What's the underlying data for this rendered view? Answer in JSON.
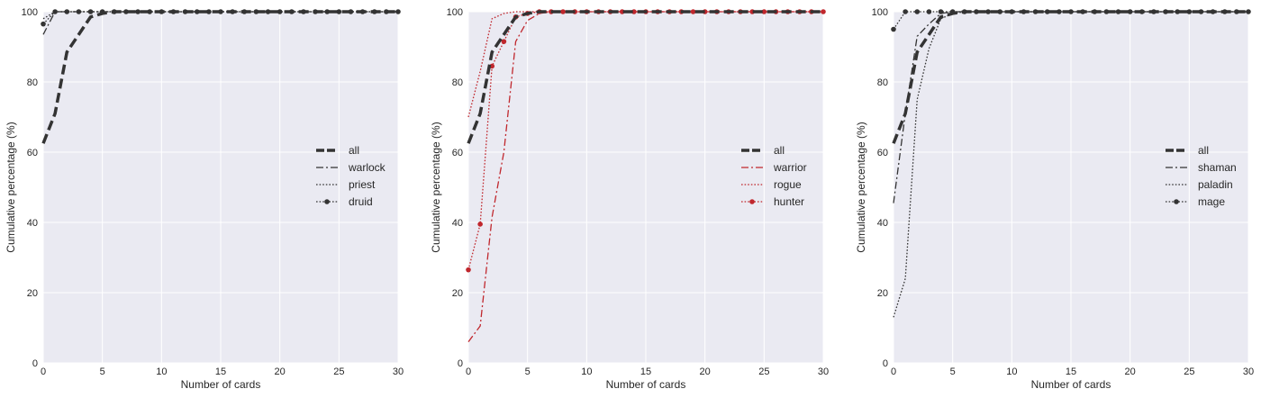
{
  "chart_data": [
    {
      "type": "line",
      "xlabel": "Number of cards",
      "ylabel": "Cumulative percentage (%)",
      "xlim": [
        0,
        30
      ],
      "ylim": [
        0,
        100
      ],
      "xticks": [
        "0",
        "5",
        "10",
        "15",
        "20",
        "25",
        "30"
      ],
      "yticks": [
        "0",
        "20",
        "40",
        "60",
        "80",
        "100"
      ],
      "grid": true,
      "legend_position": "center-right",
      "x": [
        0,
        1,
        2,
        3,
        4,
        5,
        6,
        7,
        8,
        9,
        10,
        11,
        12,
        13,
        14,
        15,
        16,
        17,
        18,
        19,
        20,
        21,
        22,
        23,
        24,
        25,
        26,
        27,
        28,
        29,
        30
      ],
      "series": [
        {
          "name": "all",
          "style": "thick-dashed",
          "color": "#333333",
          "values": [
            62.5,
            71,
            88.5,
            93.5,
            98.5,
            99.5,
            100,
            100,
            100,
            100,
            100,
            100,
            100,
            100,
            100,
            100,
            100,
            100,
            100,
            100,
            100,
            100,
            100,
            100,
            100,
            100,
            100,
            100,
            100,
            100,
            100
          ]
        },
        {
          "name": "warlock",
          "style": "dash-dot",
          "color": "#333333",
          "values": [
            93.5,
            100,
            100,
            100,
            100,
            100,
            100,
            100,
            100,
            100,
            100,
            100,
            100,
            100,
            100,
            100,
            100,
            100,
            100,
            100,
            100,
            100,
            100,
            100,
            100,
            100,
            100,
            100,
            100,
            100,
            100
          ]
        },
        {
          "name": "priest",
          "style": "dotted",
          "color": "#333333",
          "values": [
            98,
            100,
            100,
            100,
            100,
            100,
            100,
            100,
            100,
            100,
            100,
            100,
            100,
            100,
            100,
            100,
            100,
            100,
            100,
            100,
            100,
            100,
            100,
            100,
            100,
            100,
            100,
            100,
            100,
            100,
            100
          ]
        },
        {
          "name": "druid",
          "style": "dotted-marker",
          "color": "#333333",
          "values": [
            96.5,
            100,
            100,
            100,
            100,
            100,
            100,
            100,
            100,
            100,
            100,
            100,
            100,
            100,
            100,
            100,
            100,
            100,
            100,
            100,
            100,
            100,
            100,
            100,
            100,
            100,
            100,
            100,
            100,
            100,
            100
          ]
        }
      ]
    },
    {
      "type": "line",
      "xlabel": "Number of cards",
      "ylabel": "Cumulative percentage (%)",
      "xlim": [
        0,
        30
      ],
      "ylim": [
        0,
        100
      ],
      "xticks": [
        "0",
        "5",
        "10",
        "15",
        "20",
        "25",
        "30"
      ],
      "yticks": [
        "0",
        "20",
        "40",
        "60",
        "80",
        "100"
      ],
      "grid": true,
      "legend_position": "center-right",
      "x": [
        0,
        1,
        2,
        3,
        4,
        5,
        6,
        7,
        8,
        9,
        10,
        11,
        12,
        13,
        14,
        15,
        16,
        17,
        18,
        19,
        20,
        21,
        22,
        23,
        24,
        25,
        26,
        27,
        28,
        29,
        30
      ],
      "series": [
        {
          "name": "all",
          "style": "thick-dashed",
          "color": "#333333",
          "values": [
            62.5,
            71,
            88.5,
            93.5,
            98.5,
            99.5,
            100,
            100,
            100,
            100,
            100,
            100,
            100,
            100,
            100,
            100,
            100,
            100,
            100,
            100,
            100,
            100,
            100,
            100,
            100,
            100,
            100,
            100,
            100,
            100,
            100
          ]
        },
        {
          "name": "warrior",
          "style": "dash-dot",
          "color": "#c0272d",
          "values": [
            6,
            10.5,
            41.5,
            60,
            91.5,
            97.5,
            99.5,
            100,
            100,
            100,
            100,
            100,
            100,
            100,
            100,
            100,
            100,
            100,
            100,
            100,
            100,
            100,
            100,
            100,
            100,
            100,
            100,
            100,
            100,
            100,
            100
          ]
        },
        {
          "name": "rogue",
          "style": "dotted",
          "color": "#c0272d",
          "values": [
            70,
            83,
            98,
            99.5,
            100,
            100,
            100,
            100,
            100,
            100,
            100,
            100,
            100,
            100,
            100,
            100,
            100,
            100,
            100,
            100,
            100,
            100,
            100,
            100,
            100,
            100,
            100,
            100,
            100,
            100,
            100
          ]
        },
        {
          "name": "hunter",
          "style": "dotted-marker",
          "color": "#c0272d",
          "values": [
            26.5,
            39.5,
            84.5,
            91.5,
            98.5,
            99.5,
            100,
            100,
            100,
            100,
            100,
            100,
            100,
            100,
            100,
            100,
            100,
            100,
            100,
            100,
            100,
            100,
            100,
            100,
            100,
            100,
            100,
            100,
            100,
            100,
            100
          ]
        }
      ]
    },
    {
      "type": "line",
      "xlabel": "Number of cards",
      "ylabel": "Cumulative percentage (%)",
      "xlim": [
        0,
        30
      ],
      "ylim": [
        0,
        100
      ],
      "xticks": [
        "0",
        "5",
        "10",
        "15",
        "20",
        "25",
        "30"
      ],
      "yticks": [
        "0",
        "20",
        "40",
        "60",
        "80",
        "100"
      ],
      "grid": true,
      "legend_position": "center-right",
      "x": [
        0,
        1,
        2,
        3,
        4,
        5,
        6,
        7,
        8,
        9,
        10,
        11,
        12,
        13,
        14,
        15,
        16,
        17,
        18,
        19,
        20,
        21,
        22,
        23,
        24,
        25,
        26,
        27,
        28,
        29,
        30
      ],
      "series": [
        {
          "name": "all",
          "style": "thick-dashed",
          "color": "#333333",
          "values": [
            62.5,
            71,
            88.5,
            93.5,
            98.5,
            99.5,
            100,
            100,
            100,
            100,
            100,
            100,
            100,
            100,
            100,
            100,
            100,
            100,
            100,
            100,
            100,
            100,
            100,
            100,
            100,
            100,
            100,
            100,
            100,
            100,
            100
          ]
        },
        {
          "name": "shaman",
          "style": "dash-dot",
          "color": "#333333",
          "values": [
            45.5,
            71,
            93,
            96.5,
            99.5,
            100,
            100,
            100,
            100,
            100,
            100,
            100,
            100,
            100,
            100,
            100,
            100,
            100,
            100,
            100,
            100,
            100,
            100,
            100,
            100,
            100,
            100,
            100,
            100,
            100,
            100
          ]
        },
        {
          "name": "paladin",
          "style": "dotted",
          "color": "#333333",
          "values": [
            13,
            24,
            75,
            89.5,
            98,
            99.5,
            100,
            100,
            100,
            100,
            100,
            100,
            100,
            100,
            100,
            100,
            100,
            100,
            100,
            100,
            100,
            100,
            100,
            100,
            100,
            100,
            100,
            100,
            100,
            100,
            100
          ]
        },
        {
          "name": "mage",
          "style": "dotted-marker",
          "color": "#333333",
          "values": [
            95,
            100,
            100,
            100,
            100,
            100,
            100,
            100,
            100,
            100,
            100,
            100,
            100,
            100,
            100,
            100,
            100,
            100,
            100,
            100,
            100,
            100,
            100,
            100,
            100,
            100,
            100,
            100,
            100,
            100,
            100
          ]
        }
      ]
    }
  ]
}
